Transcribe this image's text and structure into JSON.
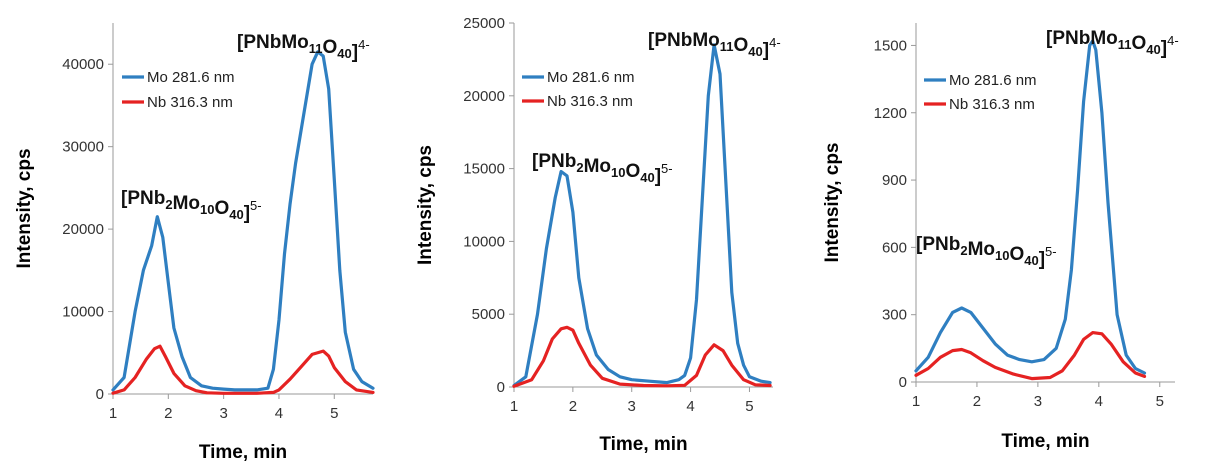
{
  "chart_data": [
    {
      "type": "line",
      "xlabel": "Time, min",
      "ylabel": "Intensity, cps",
      "xlim": [
        1,
        5.7
      ],
      "ylim": [
        0,
        45000
      ],
      "xticks": [
        1,
        2,
        3,
        4,
        5
      ],
      "yticks": [
        0,
        10000,
        20000,
        30000,
        40000
      ],
      "legend_position": "top-left",
      "series": [
        {
          "name": "Mo 281.6 nm",
          "color": "#2F7FC1",
          "x": [
            1.0,
            1.2,
            1.4,
            1.55,
            1.7,
            1.8,
            1.9,
            2.0,
            2.1,
            2.25,
            2.4,
            2.6,
            2.8,
            3.0,
            3.2,
            3.4,
            3.6,
            3.8,
            3.9,
            4.0,
            4.1,
            4.2,
            4.3,
            4.4,
            4.5,
            4.6,
            4.7,
            4.8,
            4.9,
            5.0,
            5.1,
            5.2,
            5.35,
            5.5,
            5.7
          ],
          "y": [
            500,
            2000,
            10000,
            15000,
            18000,
            21500,
            19000,
            13500,
            8000,
            4500,
            2000,
            1000,
            700,
            600,
            500,
            500,
            500,
            700,
            3000,
            9000,
            17000,
            23000,
            28000,
            32000,
            36000,
            40000,
            41500,
            41000,
            37000,
            26000,
            15000,
            7500,
            3000,
            1500,
            700
          ]
        },
        {
          "name": "Nb 316.3 nm",
          "color": "#E52222",
          "x": [
            1.0,
            1.2,
            1.4,
            1.6,
            1.75,
            1.85,
            1.95,
            2.1,
            2.3,
            2.5,
            2.7,
            3.0,
            3.3,
            3.6,
            3.9,
            4.0,
            4.2,
            4.4,
            4.6,
            4.8,
            4.9,
            5.0,
            5.2,
            5.4,
            5.7
          ],
          "y": [
            100,
            500,
            2000,
            4200,
            5500,
            5800,
            4500,
            2500,
            1000,
            400,
            150,
            80,
            80,
            80,
            200,
            500,
            1800,
            3300,
            4800,
            5200,
            4600,
            3200,
            1500,
            500,
            200
          ]
        }
      ],
      "annotations": [
        {
          "sup": "5-",
          "parts": [
            [
              "[PNb",
              false
            ],
            [
              "2",
              true
            ],
            [
              "Mo",
              false
            ],
            [
              "10",
              true
            ],
            [
              "O",
              false
            ],
            [
              "40",
              true
            ],
            [
              "]",
              false
            ]
          ]
        },
        {
          "sup": "4-",
          "parts": [
            [
              "[PNbMo",
              false
            ],
            [
              "11",
              true
            ],
            [
              "O",
              false
            ],
            [
              "40",
              true
            ],
            [
              "]",
              false
            ]
          ]
        }
      ]
    },
    {
      "type": "line",
      "xlabel": "Time, min",
      "ylabel": "Intensity, cps",
      "xlim": [
        1,
        5.4
      ],
      "ylim": [
        0,
        25000
      ],
      "xticks": [
        1,
        2,
        3,
        4,
        5
      ],
      "yticks": [
        0,
        5000,
        10000,
        15000,
        20000,
        25000
      ],
      "legend_position": "top-left",
      "series": [
        {
          "name": "Mo 281.6 nm",
          "color": "#2F7FC1",
          "x": [
            1.0,
            1.2,
            1.4,
            1.55,
            1.7,
            1.8,
            1.9,
            2.0,
            2.1,
            2.25,
            2.4,
            2.6,
            2.8,
            3.0,
            3.3,
            3.6,
            3.8,
            3.9,
            4.0,
            4.1,
            4.2,
            4.3,
            4.4,
            4.5,
            4.6,
            4.7,
            4.8,
            4.9,
            5.0,
            5.2,
            5.35
          ],
          "y": [
            100,
            700,
            5000,
            9500,
            13000,
            14800,
            14500,
            12000,
            7500,
            4000,
            2200,
            1200,
            700,
            500,
            400,
            300,
            500,
            800,
            2000,
            6000,
            13000,
            20000,
            23500,
            21500,
            14000,
            6500,
            3000,
            1500,
            700,
            400,
            300
          ]
        },
        {
          "name": "Nb 316.3 nm",
          "color": "#E52222",
          "x": [
            1.0,
            1.3,
            1.5,
            1.65,
            1.8,
            1.9,
            2.0,
            2.1,
            2.3,
            2.5,
            2.8,
            3.2,
            3.6,
            3.9,
            4.1,
            4.25,
            4.4,
            4.55,
            4.7,
            4.9,
            5.1,
            5.35
          ],
          "y": [
            50,
            500,
            1800,
            3300,
            4000,
            4100,
            3900,
            3000,
            1500,
            600,
            200,
            100,
            80,
            120,
            800,
            2200,
            2900,
            2500,
            1500,
            500,
            150,
            100
          ]
        }
      ],
      "annotations": [
        {
          "sup": "5-",
          "parts": [
            [
              "[PNb",
              false
            ],
            [
              "2",
              true
            ],
            [
              "Mo",
              false
            ],
            [
              "10",
              true
            ],
            [
              "O",
              false
            ],
            [
              "40",
              true
            ],
            [
              "]",
              false
            ]
          ]
        },
        {
          "sup": "4-",
          "parts": [
            [
              "[PNbMo",
              false
            ],
            [
              "11",
              true
            ],
            [
              "O",
              false
            ],
            [
              "40",
              true
            ],
            [
              "]",
              false
            ]
          ]
        }
      ]
    },
    {
      "type": "line",
      "xlabel": "Time, min",
      "ylabel": "Intensity, cps",
      "xlim": [
        1,
        5.25
      ],
      "ylim": [
        0,
        1600
      ],
      "xticks": [
        1,
        2,
        3,
        4,
        5
      ],
      "yticks": [
        0,
        300,
        600,
        900,
        1200,
        1500
      ],
      "legend_position": "top-left",
      "series": [
        {
          "name": "Mo 281.6 nm",
          "color": "#2F7FC1",
          "x": [
            1.0,
            1.2,
            1.4,
            1.6,
            1.75,
            1.9,
            2.1,
            2.3,
            2.5,
            2.7,
            2.9,
            3.1,
            3.3,
            3.45,
            3.55,
            3.65,
            3.75,
            3.85,
            3.9,
            3.95,
            4.05,
            4.15,
            4.3,
            4.45,
            4.6,
            4.75
          ],
          "y": [
            50,
            110,
            220,
            310,
            330,
            310,
            240,
            170,
            120,
            100,
            90,
            100,
            150,
            280,
            500,
            850,
            1250,
            1500,
            1520,
            1480,
            1200,
            800,
            300,
            120,
            60,
            40
          ]
        },
        {
          "name": "Nb 316.3 nm",
          "color": "#E52222",
          "x": [
            1.0,
            1.2,
            1.4,
            1.6,
            1.75,
            1.9,
            2.1,
            2.3,
            2.6,
            2.9,
            3.2,
            3.4,
            3.6,
            3.75,
            3.9,
            4.05,
            4.2,
            4.4,
            4.6,
            4.75
          ],
          "y": [
            30,
            60,
            110,
            140,
            145,
            130,
            95,
            65,
            35,
            15,
            20,
            50,
            120,
            190,
            220,
            215,
            170,
            90,
            40,
            25
          ]
        }
      ],
      "annotations": [
        {
          "sup": "5-",
          "parts": [
            [
              "[PNb",
              false
            ],
            [
              "2",
              true
            ],
            [
              "Mo",
              false
            ],
            [
              "10",
              true
            ],
            [
              "O",
              false
            ],
            [
              "40",
              true
            ],
            [
              "]",
              false
            ]
          ]
        },
        {
          "sup": "4-",
          "parts": [
            [
              "[PNbMo",
              false
            ],
            [
              "11",
              true
            ],
            [
              "O",
              false
            ],
            [
              "40",
              true
            ],
            [
              "]",
              false
            ]
          ]
        }
      ]
    }
  ]
}
